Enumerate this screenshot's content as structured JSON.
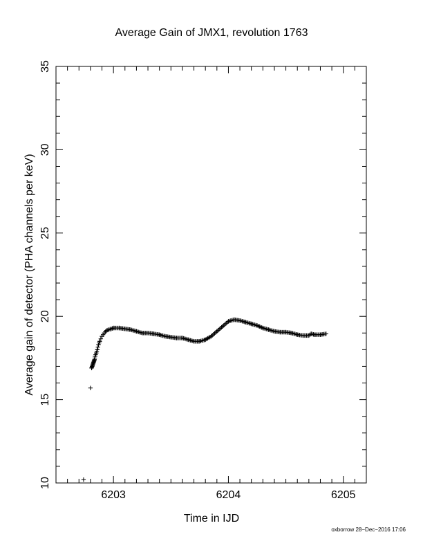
{
  "chart_data": {
    "type": "scatter",
    "title": "Average Gain of JMX1, revolution 1763",
    "xlabel": "Time in IJD",
    "ylabel": "Average gain of detector (PHA channels per keV)",
    "xlim": [
      6202.5,
      6205.2
    ],
    "ylim": [
      10,
      35
    ],
    "x_ticks": [
      6203,
      6204,
      6205
    ],
    "y_ticks": [
      10,
      15,
      20,
      25,
      30,
      35
    ],
    "x_minor_step": 0.1,
    "y_minor_step": 1,
    "grid": false,
    "marker": "+",
    "color": "#000000",
    "series": [
      {
        "x": [
          6202.74,
          6202.8,
          6202.81,
          6202.815,
          6202.82,
          6202.825,
          6202.83,
          6202.835,
          6202.84,
          6202.85,
          6202.86,
          6202.87,
          6202.88,
          6202.9,
          6202.92,
          6202.94,
          6202.96,
          6202.98,
          6203.0,
          6203.05,
          6203.1,
          6203.15,
          6203.2,
          6203.25,
          6203.3,
          6203.35,
          6203.4,
          6203.45,
          6203.5,
          6203.55,
          6203.6,
          6203.65,
          6203.7,
          6203.75,
          6203.8,
          6203.85,
          6203.9,
          6203.95,
          6204.0,
          6204.05,
          6204.1,
          6204.15,
          6204.2,
          6204.25,
          6204.3,
          6204.35,
          6204.4,
          6204.45,
          6204.5,
          6204.55,
          6204.6,
          6204.65,
          6204.7,
          6204.72,
          6204.75,
          6204.8,
          6204.85
        ],
        "y": [
          10.2,
          15.7,
          16.9,
          17.0,
          17.1,
          17.2,
          17.3,
          17.4,
          17.6,
          17.8,
          18.0,
          18.3,
          18.5,
          18.8,
          19.0,
          19.15,
          19.2,
          19.25,
          19.3,
          19.3,
          19.25,
          19.2,
          19.1,
          19.0,
          19.0,
          18.95,
          18.9,
          18.8,
          18.75,
          18.7,
          18.7,
          18.6,
          18.5,
          18.5,
          18.6,
          18.8,
          19.1,
          19.4,
          19.7,
          19.8,
          19.75,
          19.65,
          19.55,
          19.45,
          19.3,
          19.2,
          19.1,
          19.05,
          19.05,
          19.0,
          18.9,
          18.85,
          18.85,
          18.95,
          18.9,
          18.9,
          18.95
        ]
      }
    ]
  },
  "footer": {
    "text": "oxborrow 28−Dec−2016 17:06"
  }
}
